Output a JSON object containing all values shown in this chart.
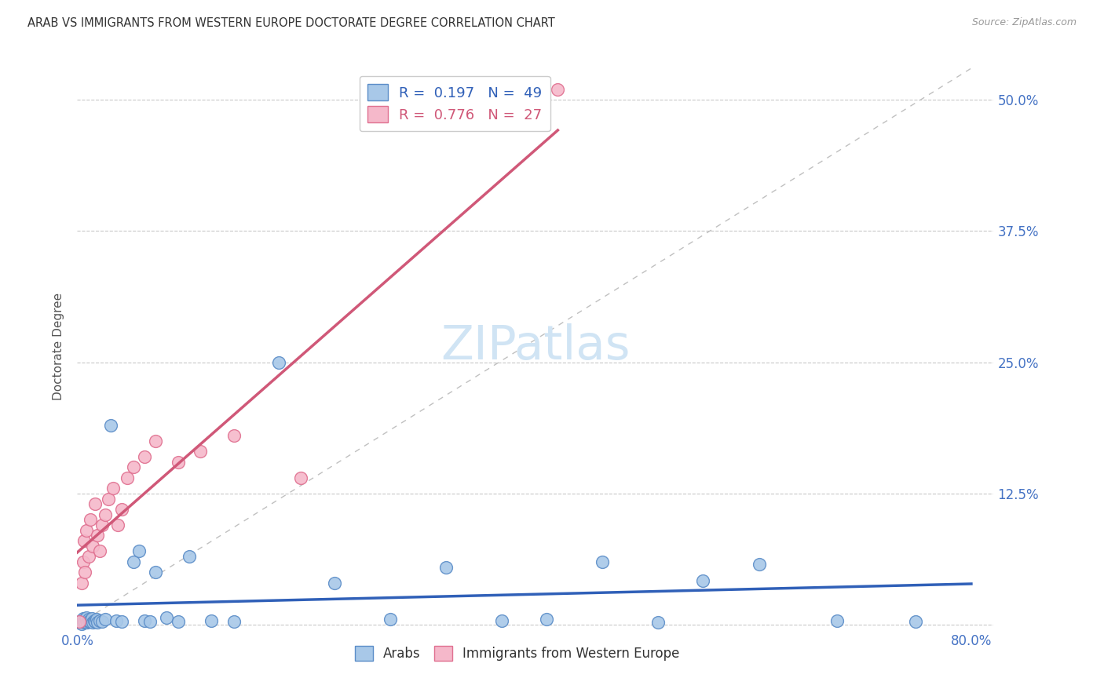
{
  "title": "ARAB VS IMMIGRANTS FROM WESTERN EUROPE DOCTORATE DEGREE CORRELATION CHART",
  "source": "Source: ZipAtlas.com",
  "ylabel": "Doctorate Degree",
  "xlim": [
    0.0,
    0.82
  ],
  "ylim": [
    -0.005,
    0.535
  ],
  "xticks": [
    0.0,
    0.2,
    0.4,
    0.6,
    0.8
  ],
  "yticks": [
    0.0,
    0.125,
    0.25,
    0.375,
    0.5
  ],
  "ytick_labels": [
    "",
    "12.5%",
    "25.0%",
    "37.5%",
    "50.0%"
  ],
  "xtick_labels": [
    "0.0%",
    "",
    "",
    "",
    "80.0%"
  ],
  "arab_R": 0.197,
  "arab_N": 49,
  "we_R": 0.776,
  "we_N": 27,
  "arab_color": "#a8c8e8",
  "we_color": "#f5b8ca",
  "arab_edge_color": "#5b8dc8",
  "we_edge_color": "#e07090",
  "arab_line_color": "#3060b8",
  "we_line_color": "#d05878",
  "legend_label_arab": "Arabs",
  "legend_label_we": "Immigrants from Western Europe",
  "arab_x": [
    0.002,
    0.003,
    0.004,
    0.005,
    0.005,
    0.006,
    0.007,
    0.007,
    0.008,
    0.008,
    0.009,
    0.01,
    0.01,
    0.011,
    0.012,
    0.013,
    0.014,
    0.015,
    0.016,
    0.017,
    0.018,
    0.02,
    0.022,
    0.025,
    0.03,
    0.035,
    0.04,
    0.05,
    0.055,
    0.06,
    0.065,
    0.07,
    0.08,
    0.09,
    0.1,
    0.12,
    0.14,
    0.18,
    0.23,
    0.28,
    0.33,
    0.38,
    0.42,
    0.47,
    0.52,
    0.56,
    0.61,
    0.68,
    0.75
  ],
  "arab_y": [
    0.002,
    0.004,
    0.001,
    0.003,
    0.006,
    0.002,
    0.005,
    0.003,
    0.004,
    0.007,
    0.002,
    0.003,
    0.005,
    0.004,
    0.003,
    0.006,
    0.002,
    0.004,
    0.003,
    0.005,
    0.002,
    0.004,
    0.003,
    0.005,
    0.19,
    0.004,
    0.003,
    0.06,
    0.07,
    0.004,
    0.003,
    0.05,
    0.007,
    0.003,
    0.065,
    0.004,
    0.003,
    0.25,
    0.04,
    0.005,
    0.055,
    0.004,
    0.005,
    0.06,
    0.002,
    0.042,
    0.058,
    0.004,
    0.003
  ],
  "we_x": [
    0.002,
    0.004,
    0.005,
    0.006,
    0.007,
    0.008,
    0.01,
    0.012,
    0.014,
    0.016,
    0.018,
    0.02,
    0.022,
    0.025,
    0.028,
    0.032,
    0.036,
    0.04,
    0.045,
    0.05,
    0.06,
    0.07,
    0.09,
    0.11,
    0.14,
    0.2,
    0.43
  ],
  "we_y": [
    0.003,
    0.04,
    0.06,
    0.08,
    0.05,
    0.09,
    0.065,
    0.1,
    0.075,
    0.115,
    0.085,
    0.07,
    0.095,
    0.105,
    0.12,
    0.13,
    0.095,
    0.11,
    0.14,
    0.15,
    0.16,
    0.175,
    0.155,
    0.165,
    0.18,
    0.14,
    0.51
  ],
  "background_color": "#ffffff",
  "grid_color": "#c8c8c8",
  "watermark_color": "#d0e4f4",
  "ref_line_color": "#c0c0c0"
}
